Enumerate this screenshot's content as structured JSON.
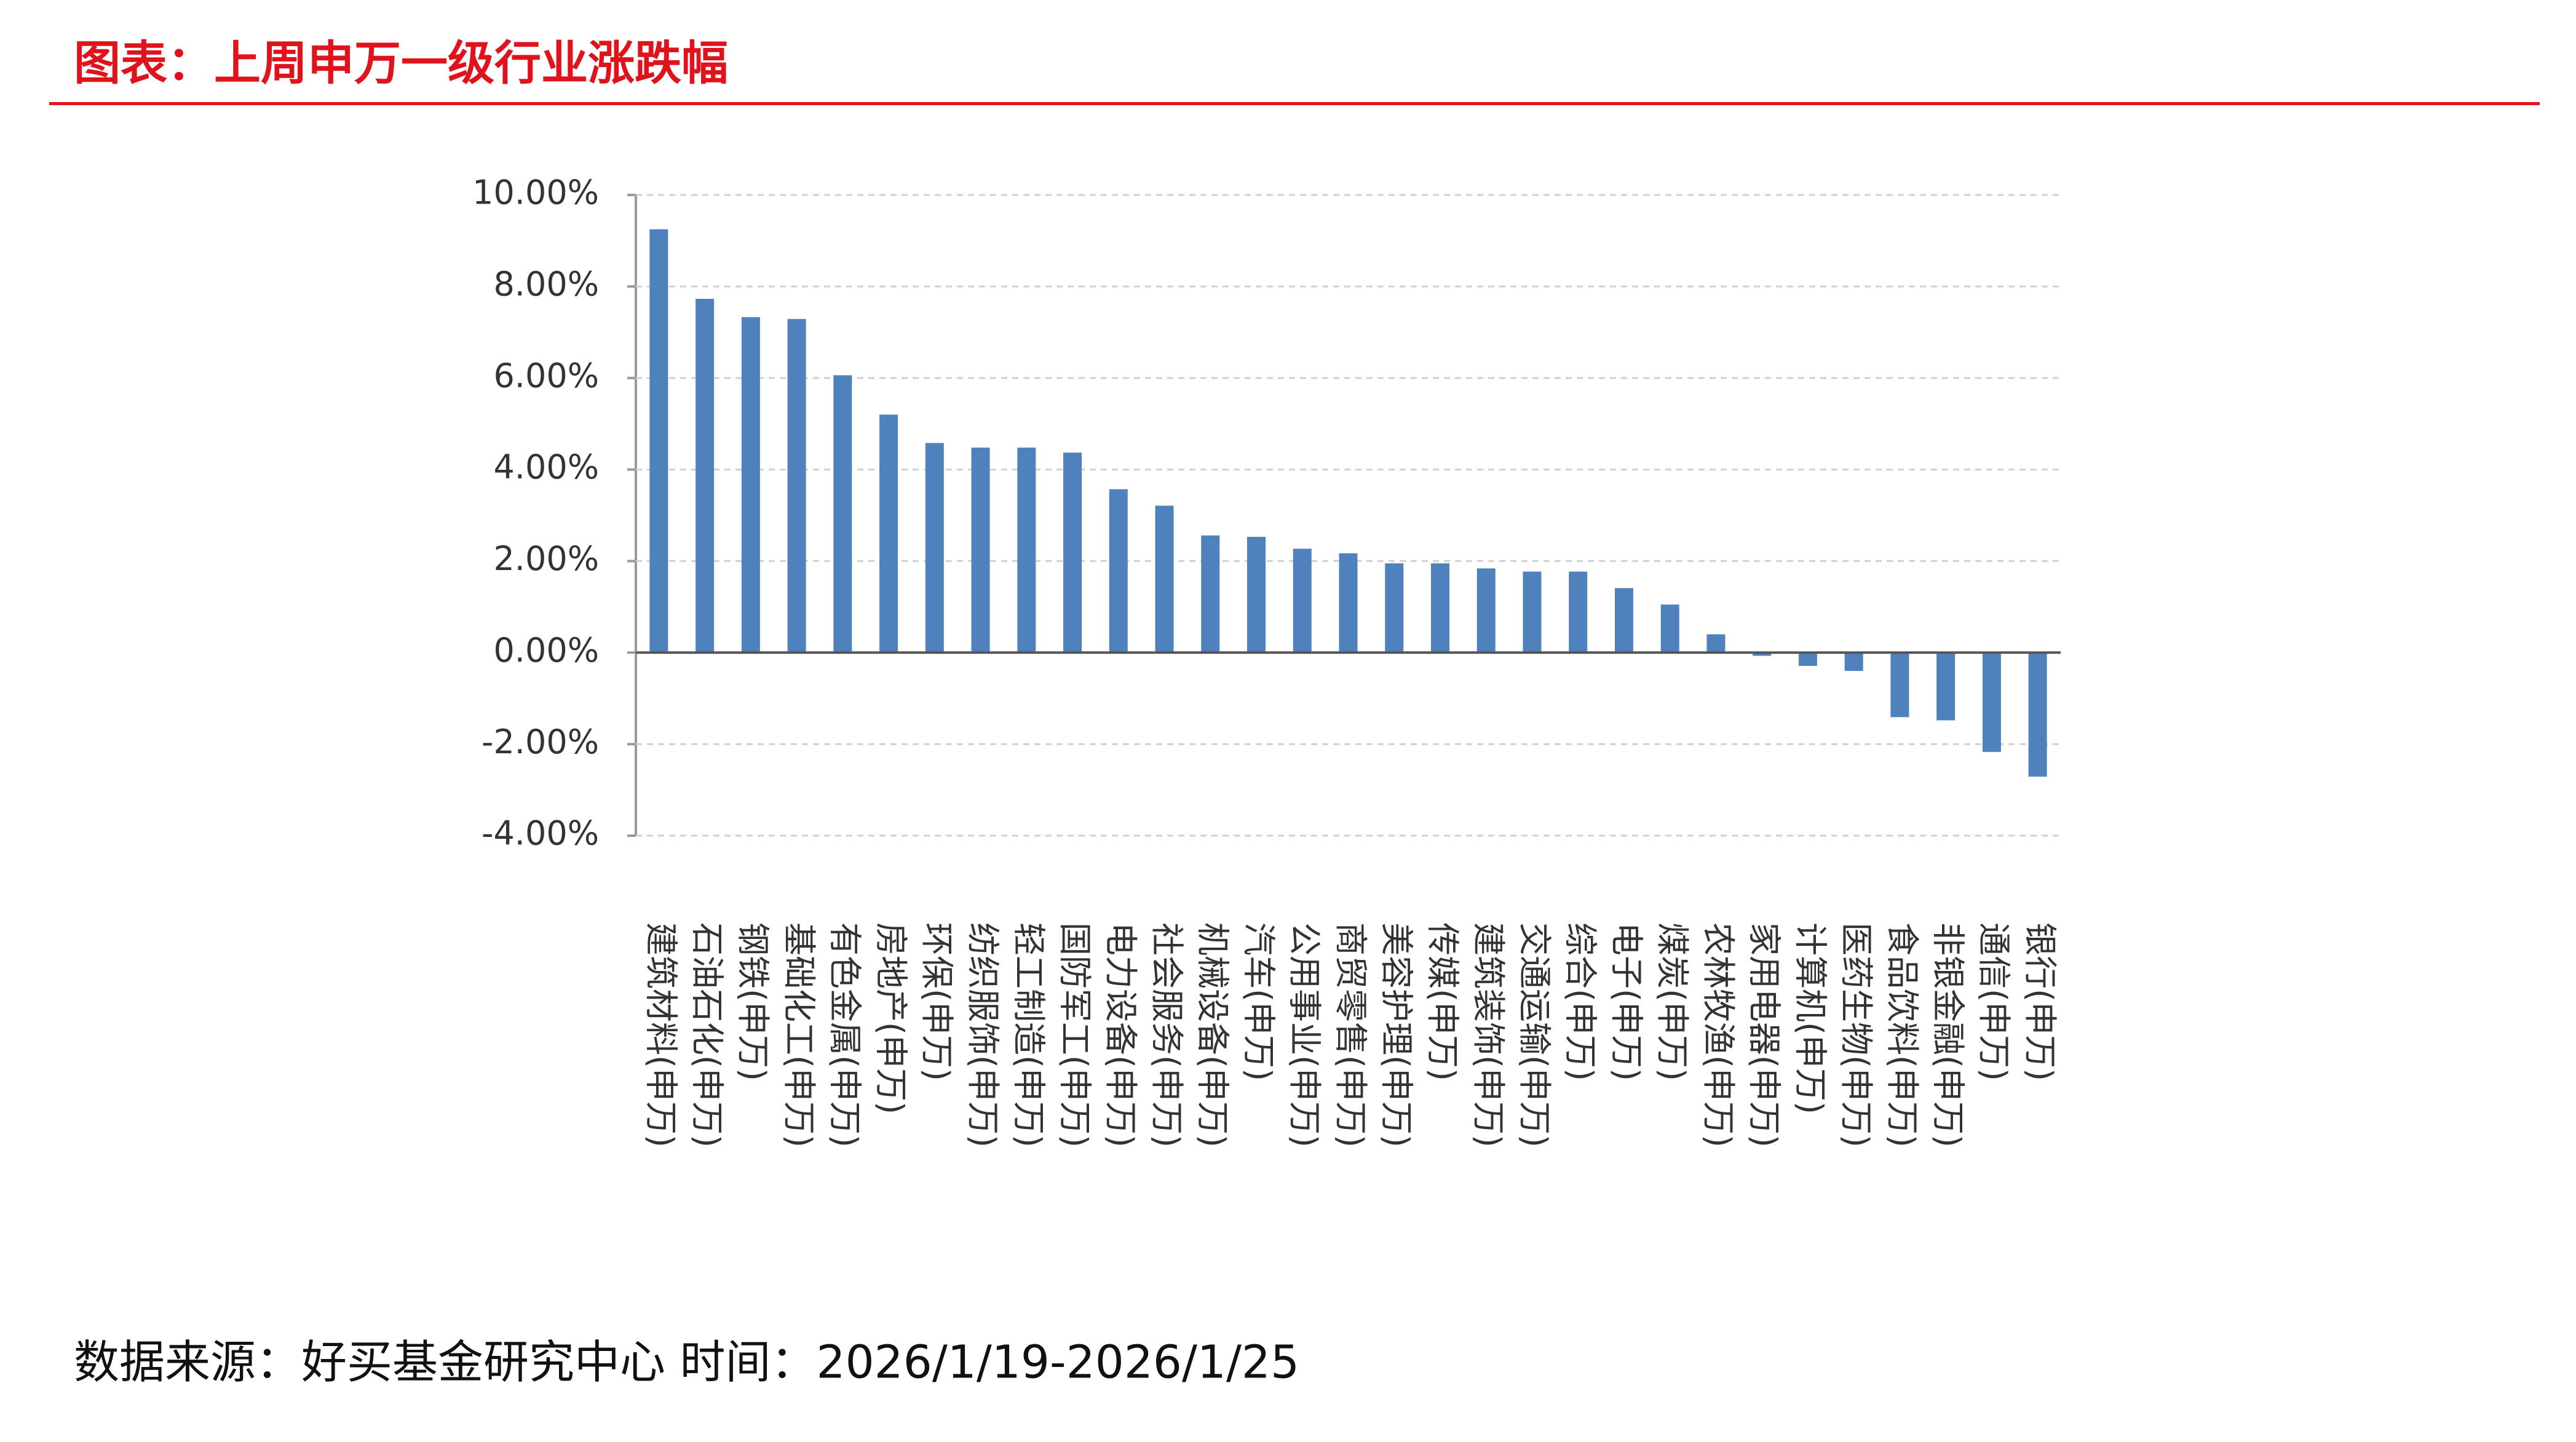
{
  "chart_data": {
    "type": "bar",
    "title": "图表：上周申万一级行业涨跌幅",
    "source": "数据来源：好买基金研究中心 时间：2026/1/19-2026/1/25",
    "color": "#4f81bd",
    "grid": true,
    "categories": [
      "建筑材料(申万)",
      "石油石化(申万)",
      "钢铁(申万)",
      "基础化工(申万)",
      "有色金属(申万)",
      "房地产(申万)",
      "环保(申万)",
      "纺织服饰(申万)",
      "轻工制造(申万)",
      "国防军工(申万)",
      "电力设备(申万)",
      "社会服务(申万)",
      "机械设备(申万)",
      "汽车(申万)",
      "公用事业(申万)",
      "商贸零售(申万)",
      "美容护理(申万)",
      "传媒(申万)",
      "建筑装饰(申万)",
      "交通运输(申万)",
      "综合(申万)",
      "电子(申万)",
      "煤炭(申万)",
      "农林牧渔(申万)",
      "家用电器(申万)",
      "计算机(申万)",
      "医药生物(申万)",
      "食品饮料(申万)",
      "非银金融(申万)",
      "通信(申万)",
      "银行(申万)"
    ],
    "values": [
      9.25,
      7.73,
      7.33,
      7.29,
      6.06,
      5.2,
      4.58,
      4.48,
      4.48,
      4.37,
      3.57,
      3.21,
      2.56,
      2.53,
      2.27,
      2.17,
      1.95,
      1.95,
      1.84,
      1.77,
      1.77,
      1.41,
      1.05,
      0.4,
      -0.07,
      -0.29,
      -0.4,
      -1.41,
      -1.48,
      -2.17,
      -2.71
    ],
    "ylim": [
      -4,
      10
    ],
    "yticks": [
      {
        "value": -4,
        "label": "-4.00%"
      },
      {
        "value": -2,
        "label": "-2.00%"
      },
      {
        "value": 0,
        "label": "0.00%"
      },
      {
        "value": 2,
        "label": "2.00%"
      },
      {
        "value": 4,
        "label": "4.00%"
      },
      {
        "value": 6,
        "label": "6.00%"
      },
      {
        "value": 8,
        "label": "8.00%"
      },
      {
        "value": 10,
        "label": "10.00%"
      }
    ]
  }
}
